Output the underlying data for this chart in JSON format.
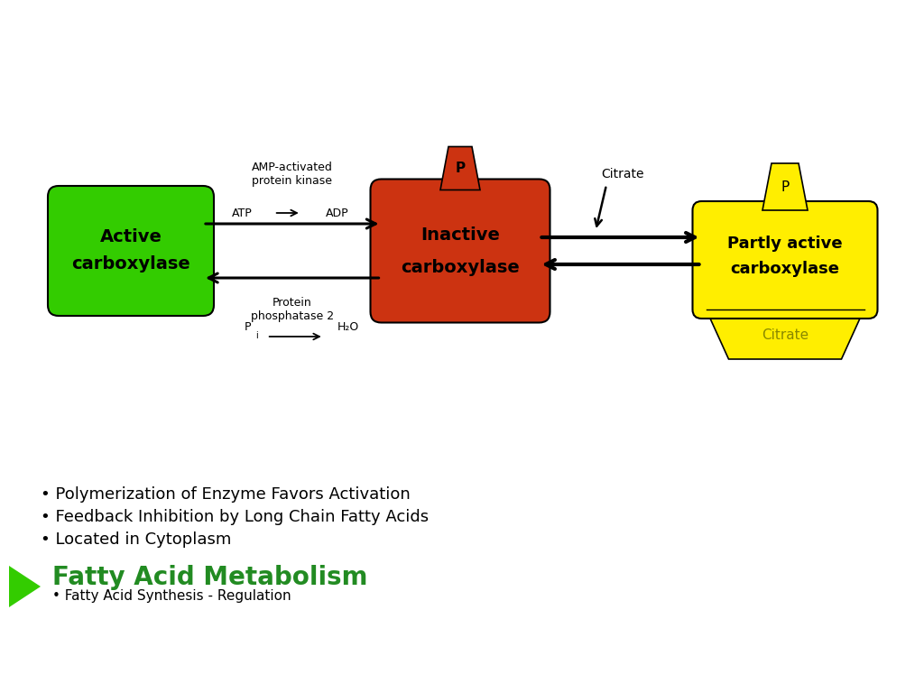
{
  "title": "Fatty Acid Metabolism",
  "subtitle": "• Fatty Acid Synthesis - Regulation",
  "bullets": [
    "• Located in Cytoplasm",
    "• Feedback Inhibition by Long Chain Fatty Acids",
    "• Polymerization of Enzyme Favors Activation"
  ],
  "title_color": "#228B22",
  "title_fontsize": 20,
  "subtitle_fontsize": 11,
  "bullet_fontsize": 13,
  "bg_color": "#FFFFFF",
  "green_color": "#33CC00",
  "red_color": "#CC3311",
  "yellow_color": "#FFEE00",
  "arrow_color": "#000000",
  "active_label": [
    "Active",
    "carboxylase"
  ],
  "inactive_label": [
    "Inactive",
    "carboxylase"
  ],
  "partly_label": [
    "Partly active",
    "carboxylase"
  ],
  "p_label": "P",
  "citrate_label": "Citrate",
  "amp_text": "AMP-activated\nprotein kinase",
  "atp_text": "ATP",
  "adp_text": "ADP",
  "protein_phos_text": "Protein\nphosphatase 2",
  "pi_text": "P",
  "h2o_text": "H₂O"
}
